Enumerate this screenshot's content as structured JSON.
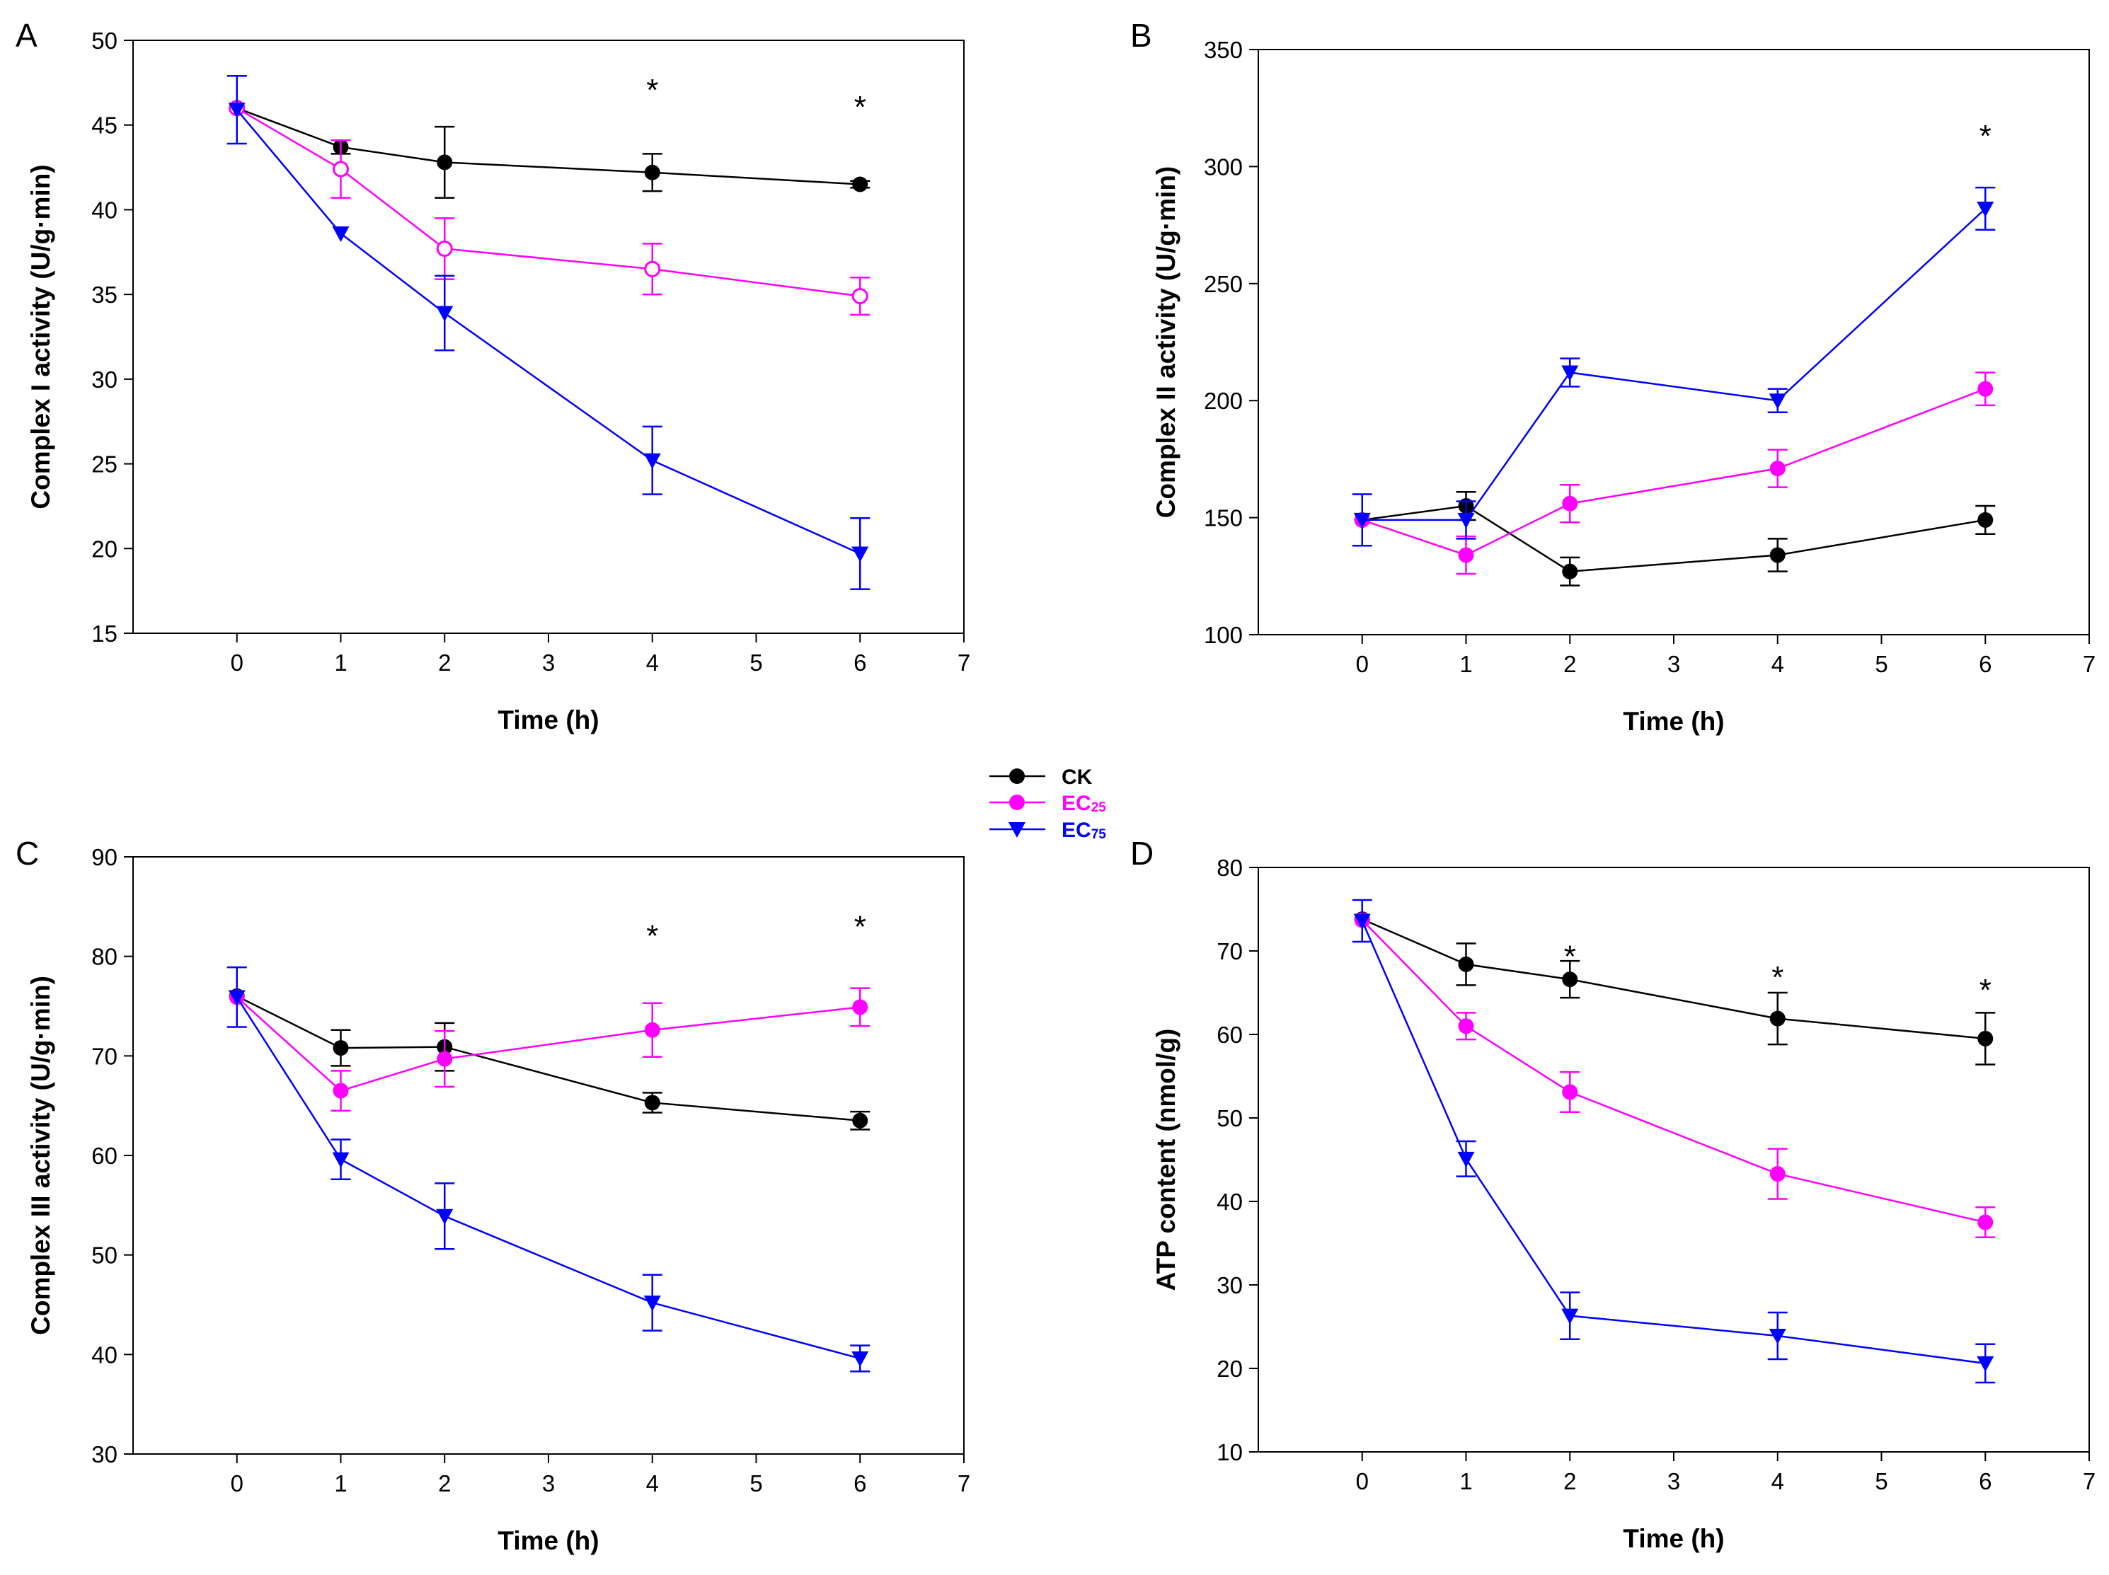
{
  "figure": {
    "legend": {
      "entries": [
        {
          "name": "CK",
          "sub": "",
          "color": "#000000",
          "marker": "circle-filled"
        },
        {
          "name": "EC",
          "sub": "25",
          "color": "#ff00ff",
          "marker": "circle-filled"
        },
        {
          "name": "EC",
          "sub": "75",
          "color": "#0000ff",
          "marker": "triangle-down"
        }
      ]
    }
  },
  "chart_data": [
    {
      "panel": "A",
      "type": "line",
      "xlabel": "Time (h)",
      "ylabel": "Complex I activity (U/g·min)",
      "xlim": [
        -1,
        7
      ],
      "ylim": [
        15,
        50
      ],
      "xticks": [
        0,
        1,
        2,
        3,
        4,
        5,
        6,
        7
      ],
      "yticks": [
        15,
        20,
        25,
        30,
        35,
        40,
        45,
        50
      ],
      "x": [
        0,
        1,
        2,
        4,
        6
      ],
      "series": [
        {
          "name": "CK",
          "color": "#000000",
          "marker": "circle-filled",
          "values": [
            46,
            43.7,
            42.8,
            42.2,
            41.5
          ],
          "errors": [
            0,
            0.4,
            2.1,
            1.1,
            0.2
          ]
        },
        {
          "name": "EC25",
          "color": "#ff00ff",
          "marker": "circle-open",
          "values": [
            46,
            42.4,
            37.7,
            36.5,
            34.9
          ],
          "errors": [
            0,
            1.7,
            1.8,
            1.5,
            1.1
          ]
        },
        {
          "name": "EC75",
          "color": "#0000ff",
          "marker": "triangle-down",
          "values": [
            45.9,
            38.6,
            33.9,
            25.2,
            19.7
          ],
          "errors": [
            2.0,
            0,
            2.2,
            2.0,
            2.1
          ]
        }
      ],
      "significance": [
        {
          "x": 4,
          "y": 47.2,
          "label": "*"
        },
        {
          "x": 6,
          "y": 46.2,
          "label": "*"
        }
      ]
    },
    {
      "panel": "B",
      "type": "line",
      "xlabel": "Time (h)",
      "ylabel": "Complex II activity (U/g·min)",
      "xlim": [
        -1,
        7
      ],
      "ylim": [
        100,
        350
      ],
      "xticks": [
        0,
        1,
        2,
        3,
        4,
        5,
        6,
        7
      ],
      "yticks": [
        100,
        150,
        200,
        250,
        300,
        350
      ],
      "x": [
        0,
        1,
        2,
        4,
        6
      ],
      "series": [
        {
          "name": "CK",
          "color": "#000000",
          "marker": "circle-filled",
          "values": [
            149,
            155,
            127,
            134,
            149
          ],
          "errors": [
            0,
            6,
            6,
            7,
            6
          ]
        },
        {
          "name": "EC25",
          "color": "#ff00ff",
          "marker": "circle-filled",
          "values": [
            149,
            134,
            156,
            171,
            205
          ],
          "errors": [
            0,
            8,
            8,
            8,
            7
          ]
        },
        {
          "name": "EC75",
          "color": "#0000ff",
          "marker": "triangle-down",
          "values": [
            149,
            149,
            212,
            200,
            282
          ],
          "errors": [
            11,
            8,
            6,
            5,
            9
          ]
        }
      ],
      "significance": [
        {
          "x": 6,
          "y": 314,
          "label": "*"
        }
      ]
    },
    {
      "panel": "C",
      "type": "line",
      "xlabel": "Time (h)",
      "ylabel": "Complex III activity (U/g·min)",
      "xlim": [
        -1,
        7
      ],
      "ylim": [
        30,
        90
      ],
      "xticks": [
        0,
        1,
        2,
        3,
        4,
        5,
        6,
        7
      ],
      "yticks": [
        30,
        40,
        50,
        60,
        70,
        80,
        90
      ],
      "x": [
        0,
        1,
        2,
        4,
        6
      ],
      "series": [
        {
          "name": "CK",
          "color": "#000000",
          "marker": "circle-filled",
          "values": [
            76,
            70.8,
            70.9,
            65.3,
            63.5
          ],
          "errors": [
            0,
            1.8,
            2.4,
            1.0,
            0.9
          ]
        },
        {
          "name": "EC25",
          "color": "#ff00ff",
          "marker": "circle-filled",
          "values": [
            75.9,
            66.5,
            69.7,
            72.6,
            74.9
          ],
          "errors": [
            0,
            2.0,
            2.8,
            2.7,
            1.9
          ]
        },
        {
          "name": "EC75",
          "color": "#0000ff",
          "marker": "triangle-down",
          "values": [
            75.9,
            59.6,
            53.9,
            45.2,
            39.6
          ],
          "errors": [
            3.0,
            2.0,
            3.3,
            2.8,
            1.3
          ]
        }
      ],
      "significance": [
        {
          "x": 4,
          "y": 82.3,
          "label": "*"
        },
        {
          "x": 6,
          "y": 83.2,
          "label": "*"
        }
      ]
    },
    {
      "panel": "D",
      "type": "line",
      "xlabel": "Time (h)",
      "ylabel": "ATP content (nmol/g)",
      "xlim": [
        -1,
        7
      ],
      "ylim": [
        10,
        80
      ],
      "xticks": [
        0,
        1,
        2,
        3,
        4,
        5,
        6,
        7
      ],
      "yticks": [
        10,
        20,
        30,
        40,
        50,
        60,
        70,
        80
      ],
      "x": [
        0,
        1,
        2,
        4,
        6
      ],
      "series": [
        {
          "name": "CK",
          "color": "#000000",
          "marker": "circle-filled",
          "values": [
            73.8,
            68.4,
            66.6,
            61.9,
            59.5
          ],
          "errors": [
            0,
            2.5,
            2.2,
            3.1,
            3.1
          ]
        },
        {
          "name": "EC25",
          "color": "#ff00ff",
          "marker": "circle-filled",
          "values": [
            73.7,
            61.0,
            53.1,
            43.3,
            37.5
          ],
          "errors": [
            0,
            1.6,
            2.4,
            3.0,
            1.8
          ]
        },
        {
          "name": "EC75",
          "color": "#0000ff",
          "marker": "triangle-down",
          "values": [
            73.6,
            45.1,
            26.3,
            23.9,
            20.6
          ],
          "errors": [
            2.5,
            2.1,
            2.8,
            2.8,
            2.3
          ]
        }
      ],
      "significance": [
        {
          "x": 2,
          "y": 69.6,
          "label": "*"
        },
        {
          "x": 4,
          "y": 67.1,
          "label": "*"
        },
        {
          "x": 6,
          "y": 65.6,
          "label": "*"
        }
      ]
    }
  ]
}
